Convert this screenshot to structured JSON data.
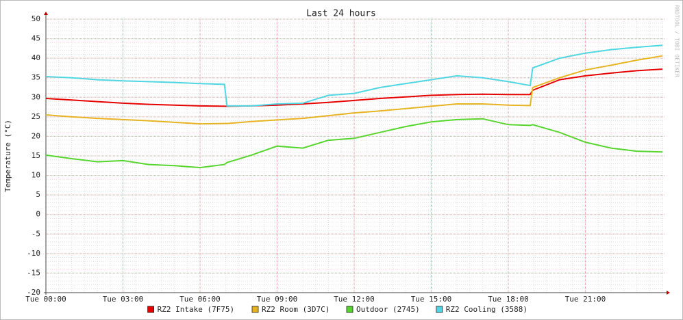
{
  "chart_data": {
    "type": "line",
    "title": "Last 24 hours",
    "y_label": "Temperature (°C)",
    "watermark": "RRDTOOL / TOBI OETIKER",
    "x": [
      0,
      1,
      2,
      3,
      4,
      5,
      6,
      6.95,
      7.05,
      8,
      9,
      10,
      11,
      12,
      13,
      14,
      15,
      16,
      17,
      18,
      18.85,
      18.95,
      20,
      21,
      22,
      23,
      24
    ],
    "xlim": [
      0,
      24.08
    ],
    "xticks": [
      {
        "value": 0,
        "label": "Tue 00:00"
      },
      {
        "value": 3,
        "label": "Tue 03:00"
      },
      {
        "value": 6,
        "label": "Tue 06:00"
      },
      {
        "value": 9,
        "label": "Tue 09:00"
      },
      {
        "value": 12,
        "label": "Tue 12:00"
      },
      {
        "value": 15,
        "label": "Tue 15:00"
      },
      {
        "value": 18,
        "label": "Tue 18:00"
      },
      {
        "value": 21,
        "label": "Tue 21:00"
      }
    ],
    "ylim": [
      -20,
      50
    ],
    "yticks": [
      -20,
      -15,
      -10,
      -5,
      0,
      5,
      10,
      15,
      20,
      25,
      30,
      35,
      40,
      45,
      50
    ],
    "grid": true,
    "series": [
      {
        "name": "RZ2 Intake (7F75)",
        "color": "#e60000",
        "values": [
          29.7,
          29.3,
          28.9,
          28.5,
          28.2,
          28.0,
          27.8,
          27.7,
          27.7,
          27.8,
          28.0,
          28.3,
          28.7,
          29.2,
          29.7,
          30.1,
          30.5,
          30.7,
          30.8,
          30.7,
          30.7,
          31.8,
          34.5,
          35.5,
          36.2,
          36.8,
          37.2
        ]
      },
      {
        "name": "RZ2 Room (3D7C)",
        "color": "#e6b422",
        "values": [
          25.5,
          25.0,
          24.6,
          24.3,
          24.0,
          23.6,
          23.2,
          23.3,
          23.3,
          23.8,
          24.2,
          24.6,
          25.3,
          26.0,
          26.5,
          27.1,
          27.7,
          28.3,
          28.3,
          28.0,
          27.9,
          32.5,
          35.0,
          37.0,
          38.2,
          39.5,
          40.6
        ]
      },
      {
        "name": "Outdoor (2745)",
        "color": "#55d52e",
        "values": [
          15.2,
          14.3,
          13.5,
          13.8,
          12.8,
          12.5,
          12.0,
          12.8,
          13.3,
          15.2,
          17.5,
          17.0,
          19.0,
          19.5,
          21.0,
          22.5,
          23.7,
          24.3,
          24.5,
          23.0,
          22.8,
          23.0,
          21.0,
          18.5,
          17.0,
          16.2,
          16.0
        ]
      },
      {
        "name": "RZ2 Cooling (3588)",
        "color": "#4fd6e3",
        "values": [
          35.3,
          35.0,
          34.5,
          34.2,
          34.0,
          33.8,
          33.5,
          33.3,
          27.8,
          27.8,
          28.3,
          28.5,
          30.5,
          31.0,
          32.5,
          33.5,
          34.5,
          35.5,
          35.0,
          34.0,
          33.0,
          37.5,
          40.0,
          41.3,
          42.2,
          42.8,
          43.3
        ]
      }
    ]
  }
}
